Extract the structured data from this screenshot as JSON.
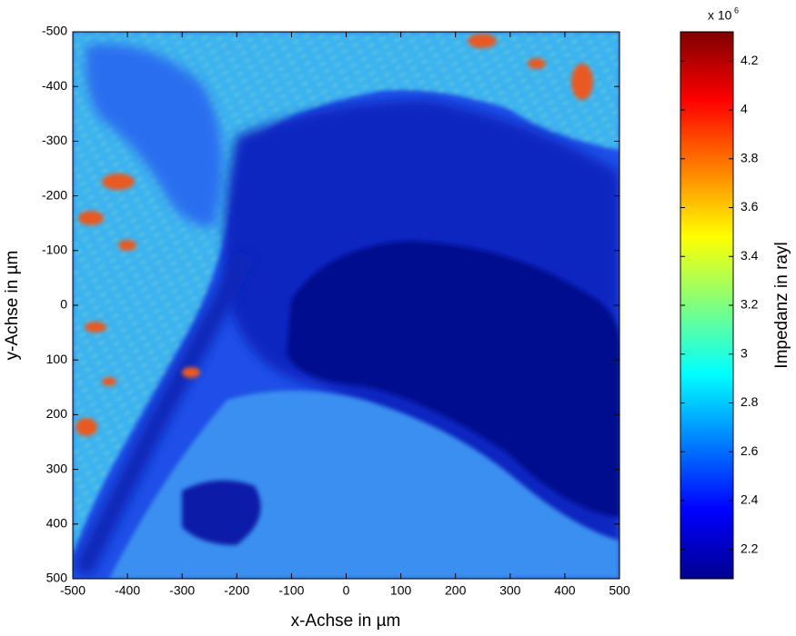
{
  "chart_data": {
    "type": "heatmap",
    "x_label": "x-Achse in µm",
    "y_label": "y-Achse in µm",
    "xlim": [
      -500,
      500
    ],
    "xticks": [
      -500,
      -400,
      -300,
      -200,
      -100,
      0,
      100,
      200,
      300,
      400,
      500
    ],
    "ylim": [
      -500,
      500
    ],
    "yticks": [
      -500,
      -400,
      -300,
      -200,
      -100,
      0,
      100,
      200,
      300,
      400,
      500
    ],
    "colorbar": {
      "label": "Impedanz in rayl",
      "multiplier_base": "x 10",
      "multiplier_exponent": "6",
      "colormap": "jet",
      "clim": [
        2.08,
        4.32
      ],
      "ticks": [
        2.2,
        2.4,
        2.6,
        2.8,
        3,
        3.2,
        3.4,
        3.6,
        3.8,
        4,
        4.2
      ]
    }
  }
}
